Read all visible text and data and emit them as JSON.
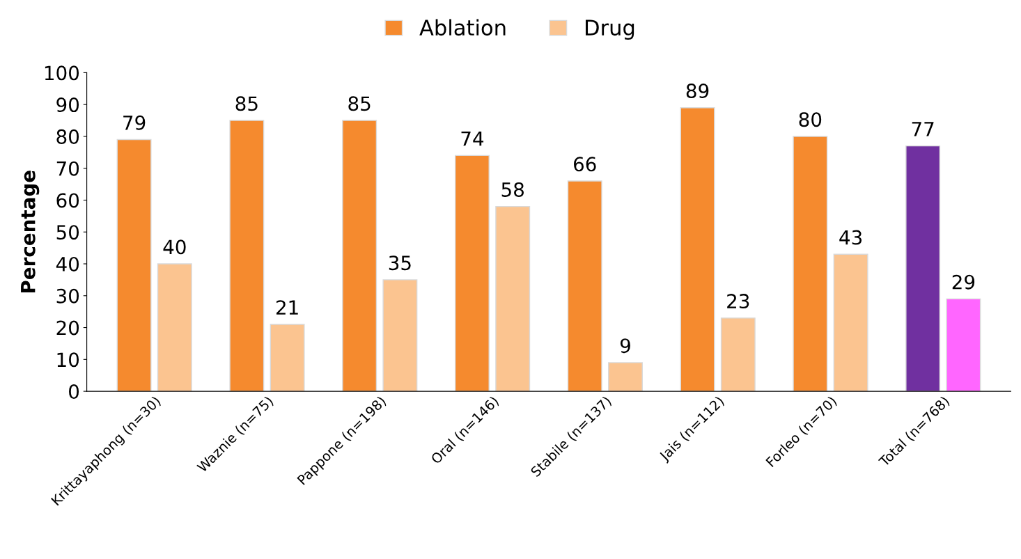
{
  "chart_data": {
    "type": "bar",
    "ylabel": "Percentage",
    "categories": [
      "Krittayaphong (n=30)",
      "Waznie (n=75)",
      "Pappone (n=198)",
      "Oral (n=146)",
      "Stabile (n=137)",
      "Jais (n=112)",
      "Forleo (n=70)",
      "Total (n=768)"
    ],
    "series": [
      {
        "name": "Ablation",
        "color": "#f58a2e",
        "colors": [
          "#f58a2e",
          "#f58a2e",
          "#f58a2e",
          "#f58a2e",
          "#f58a2e",
          "#f58a2e",
          "#f58a2e",
          "#7030a0"
        ],
        "values": [
          79,
          85,
          85,
          74,
          66,
          89,
          80,
          77
        ]
      },
      {
        "name": "Drug",
        "color": "#fbc490",
        "colors": [
          "#fbc490",
          "#fbc490",
          "#fbc490",
          "#fbc490",
          "#fbc490",
          "#fbc490",
          "#fbc490",
          "#ff66ff"
        ],
        "values": [
          40,
          21,
          35,
          58,
          9,
          23,
          43,
          29
        ]
      }
    ],
    "ylim": [
      0,
      100
    ],
    "yticks": [
      0,
      10,
      20,
      30,
      40,
      50,
      60,
      70,
      80,
      90,
      100
    ],
    "data_labels": true,
    "grid": false,
    "legend": "top"
  }
}
